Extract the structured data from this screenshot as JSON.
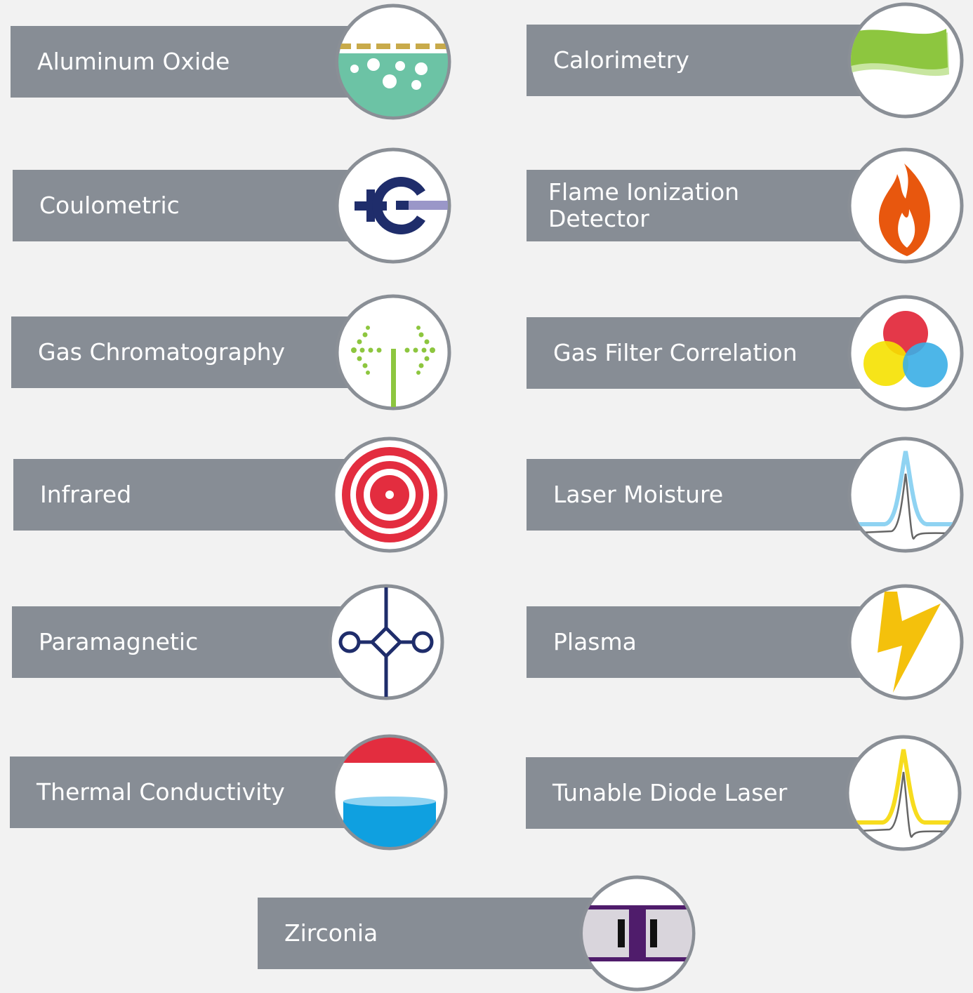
{
  "items": [
    {
      "label": "Aluminum Oxide"
    },
    {
      "label": "Calorimetry"
    },
    {
      "label": "Coulometric"
    },
    {
      "label": "Flame Ionization Detector"
    },
    {
      "label": "Gas Chromatography"
    },
    {
      "label": "Gas Filter Correlation"
    },
    {
      "label": "Infrared"
    },
    {
      "label": "Laser Moisture"
    },
    {
      "label": "Paramagnetic"
    },
    {
      "label": "Plasma"
    },
    {
      "label": "Thermal Conductivity"
    },
    {
      "label": "Tunable Diode Laser"
    },
    {
      "label": "Zirconia"
    }
  ]
}
